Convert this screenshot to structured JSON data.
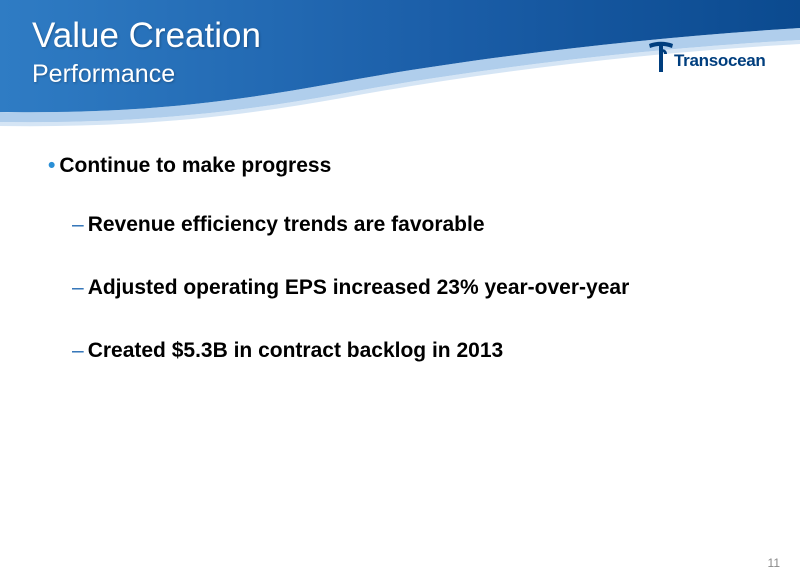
{
  "header": {
    "title": "Value Creation",
    "subtitle": "Performance",
    "colors": {
      "dark": "#0b4a8f",
      "light": "#2f7cc4",
      "swoosh": "#6fa6dc"
    }
  },
  "logo": {
    "text": "Transocean",
    "icon": "transocean-t-icon",
    "color": "#003e7e"
  },
  "content": {
    "bullet_icon": "•",
    "dash_icon": "–",
    "main_bullet": "Continue to make progress",
    "sub_bullets": [
      "Revenue efficiency trends are favorable",
      "Adjusted operating EPS increased 23% year-over-year",
      "Created $5.3B in contract backlog in 2013"
    ]
  },
  "footer": {
    "page_number": "11"
  }
}
